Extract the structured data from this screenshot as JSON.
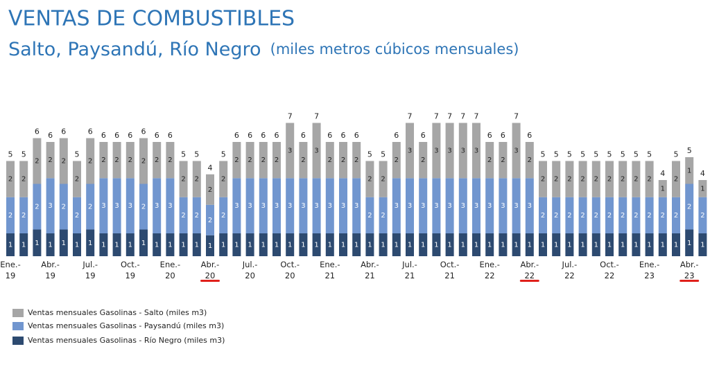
{
  "chart_data": {
    "type": "stacked_bar",
    "title": "VENTAS DE COMBUSTIBLES",
    "subtitle": "Salto, Paysandú, Río Negro",
    "unit_note": "(miles metros cúbicos mensuales)",
    "categories": [
      "Ene.-\n19",
      null,
      null,
      "Abr.-\n19",
      null,
      null,
      "Jul.-\n19",
      null,
      null,
      "Oct.-\n19",
      null,
      null,
      "Ene.-\n20",
      null,
      null,
      "Abr.-\n20",
      null,
      null,
      "Jul.-\n20",
      null,
      null,
      "Oct.-\n20",
      null,
      null,
      "Ene.-\n21",
      null,
      null,
      "Abr.-\n21",
      null,
      null,
      "Jul.-\n21",
      null,
      null,
      "Oct.-\n21",
      null,
      null,
      "Ene.-\n22",
      null,
      null,
      "Abr.-\n22",
      null,
      null,
      "Jul.-\n22",
      null,
      null,
      "Oct.-\n22",
      null,
      null,
      "Ene.-\n23",
      null,
      null,
      "Abr.-\n23",
      null
    ],
    "series": [
      {
        "name": "Ventas  mensuales Gasolinas - Salto (miles m3)",
        "color": "#a6a6a6",
        "label_color": "#222222",
        "values": [
          1.9,
          1.9,
          2.4,
          1.9,
          2.4,
          1.9,
          2.4,
          1.9,
          1.9,
          1.9,
          2.4,
          1.9,
          1.9,
          1.9,
          1.9,
          1.6,
          1.9,
          1.9,
          1.9,
          1.9,
          1.9,
          2.9,
          1.9,
          2.9,
          1.9,
          1.9,
          1.9,
          1.9,
          1.9,
          1.9,
          2.9,
          1.9,
          2.9,
          2.9,
          2.9,
          2.9,
          1.9,
          1.9,
          2.9,
          1.9,
          1.9,
          1.9,
          1.9,
          1.9,
          1.9,
          1.9,
          1.9,
          1.9,
          1.9,
          0.9,
          1.9,
          1.4,
          0.9
        ],
        "value_labels": [
          "2",
          "2",
          "2",
          "2",
          "2",
          "2",
          "2",
          "2",
          "2",
          "2",
          "2",
          "2",
          "2",
          "2",
          "2",
          "2",
          "2",
          "2",
          "2",
          "2",
          "2",
          "3",
          "2",
          "3",
          "2",
          "2",
          "2",
          "2",
          "2",
          "2",
          "3",
          "2",
          "3",
          "3",
          "3",
          "3",
          "2",
          "2",
          "3",
          "2",
          "2",
          "2",
          "2",
          "2",
          "2",
          "2",
          "2",
          "2",
          "2",
          "1",
          "2",
          "1",
          "1"
        ]
      },
      {
        "name": "Ventas  mensuales Gasolinas - Paysandú (miles m3)",
        "color": "#7196cf",
        "label_color": "#ffffff",
        "values": [
          1.9,
          1.9,
          2.4,
          2.9,
          2.4,
          1.9,
          2.4,
          2.9,
          2.9,
          2.9,
          2.4,
          2.9,
          2.9,
          1.9,
          1.9,
          1.6,
          1.9,
          2.9,
          2.9,
          2.9,
          2.9,
          2.9,
          2.9,
          2.9,
          2.9,
          2.9,
          2.9,
          1.9,
          1.9,
          2.9,
          2.9,
          2.9,
          2.9,
          2.9,
          2.9,
          2.9,
          2.9,
          2.9,
          2.9,
          2.9,
          1.9,
          1.9,
          1.9,
          1.9,
          1.9,
          1.9,
          1.9,
          1.9,
          1.9,
          1.9,
          1.9,
          2.4,
          1.9
        ],
        "value_labels": [
          "2",
          "2",
          "2",
          "3",
          "2",
          "2",
          "2",
          "3",
          "3",
          "3",
          "2",
          "3",
          "3",
          "2",
          "2",
          "2",
          "2",
          "3",
          "3",
          "3",
          "3",
          "3",
          "3",
          "3",
          "3",
          "3",
          "3",
          "2",
          "2",
          "3",
          "3",
          "3",
          "3",
          "3",
          "3",
          "3",
          "3",
          "3",
          "3",
          "3",
          "2",
          "2",
          "2",
          "2",
          "2",
          "2",
          "2",
          "2",
          "2",
          "2",
          "2",
          "2",
          "2"
        ]
      },
      {
        "name": "Ventas  mensuales Gasolinas - Río Negro (miles m3)",
        "color": "#2d4a70",
        "label_color": "#ffffff",
        "values": [
          1.2,
          1.2,
          1.4,
          1.2,
          1.4,
          1.2,
          1.4,
          1.2,
          1.2,
          1.2,
          1.4,
          1.2,
          1.2,
          1.2,
          1.2,
          1.1,
          1.2,
          1.2,
          1.2,
          1.2,
          1.2,
          1.2,
          1.2,
          1.2,
          1.2,
          1.2,
          1.2,
          1.2,
          1.2,
          1.2,
          1.2,
          1.2,
          1.2,
          1.2,
          1.2,
          1.2,
          1.2,
          1.2,
          1.2,
          1.2,
          1.2,
          1.2,
          1.2,
          1.2,
          1.2,
          1.2,
          1.2,
          1.2,
          1.2,
          1.2,
          1.2,
          1.4,
          1.2
        ],
        "value_labels": [
          "1",
          "1",
          "1",
          "1",
          "1",
          "1",
          "1",
          "1",
          "1",
          "1",
          "1",
          "1",
          "1",
          "1",
          "1",
          "1",
          "1",
          "1",
          "1",
          "1",
          "1",
          "1",
          "1",
          "1",
          "1",
          "1",
          "1",
          "1",
          "1",
          "1",
          "1",
          "1",
          "1",
          "1",
          "1",
          "1",
          "1",
          "1",
          "1",
          "1",
          "1",
          "1",
          "1",
          "1",
          "1",
          "1",
          "1",
          "1",
          "1",
          "1",
          "1",
          "1",
          "1"
        ]
      }
    ],
    "total_labels": [
      "5",
      "5",
      "6",
      "6",
      "6",
      "5",
      "6",
      "6",
      "6",
      "6",
      "6",
      "6",
      "6",
      "5",
      "5",
      "4",
      "5",
      "6",
      "6",
      "6",
      "6",
      "7",
      "6",
      "7",
      "6",
      "6",
      "6",
      "5",
      "5",
      "6",
      "7",
      "6",
      "7",
      "7",
      "7",
      "7",
      "6",
      "6",
      "7",
      "6",
      "5",
      "5",
      "5",
      "5",
      "5",
      "5",
      "5",
      "5",
      "5",
      "4",
      "5",
      "5",
      "4"
    ]
  }
}
